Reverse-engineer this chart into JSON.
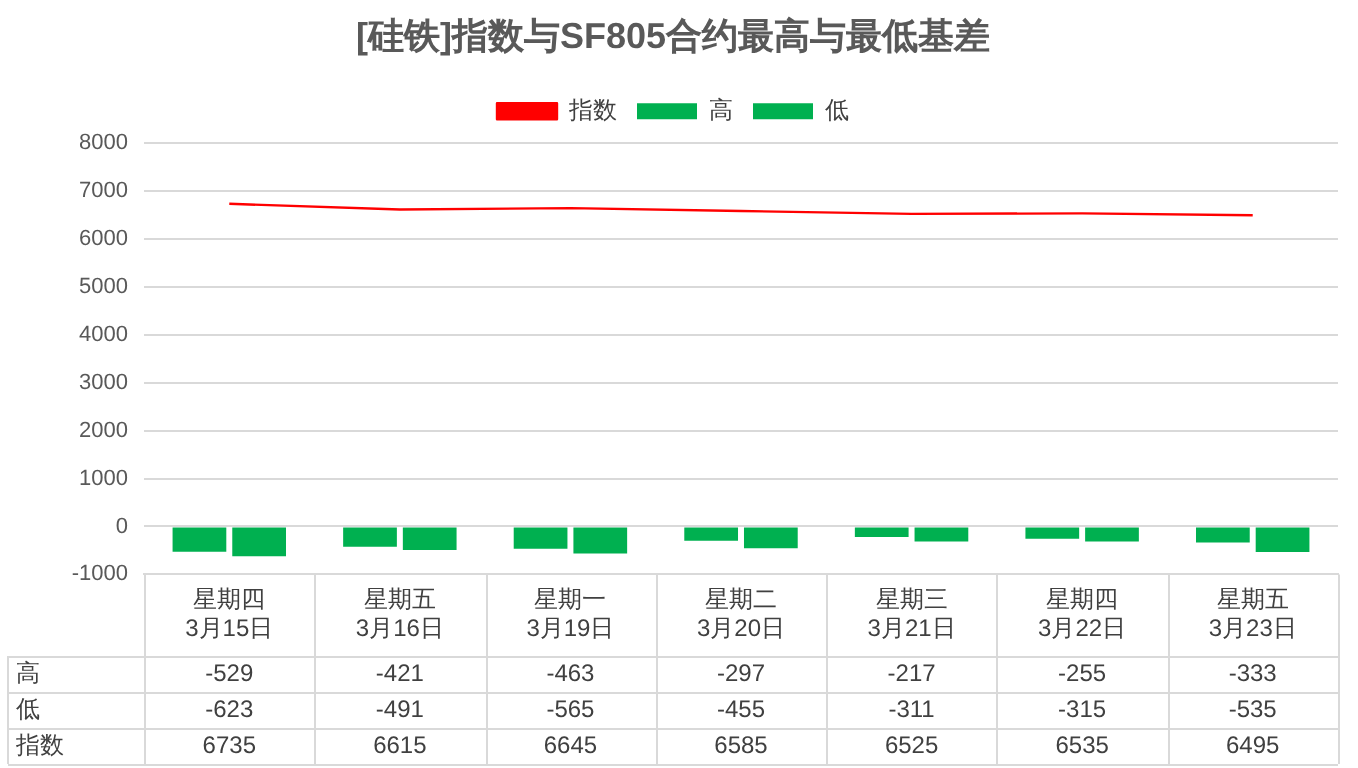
{
  "chart_data": {
    "type": "bar",
    "title": "[硅铁]指数与SF805合约最高与最低基差",
    "categories": [
      "星期四\n3月15日",
      "星期五\n3月16日",
      "星期一\n3月19日",
      "星期二\n3月20日",
      "星期三\n3月21日",
      "星期四\n3月22日",
      "星期五\n3月23日"
    ],
    "series": [
      {
        "name": "高",
        "color": "#00b050",
        "values": [
          -529,
          -421,
          -463,
          -297,
          -217,
          -255,
          -333
        ]
      },
      {
        "name": "低",
        "color": "#00b050",
        "values": [
          -623,
          -491,
          -565,
          -455,
          -311,
          -315,
          -535
        ]
      },
      {
        "name": "指数",
        "type": "line",
        "color": "#ff0000",
        "values": [
          6735,
          6615,
          6645,
          6585,
          6525,
          6535,
          6495
        ]
      }
    ],
    "ylim": [
      -1000,
      8000
    ],
    "yticks": [
      -1000,
      0,
      1000,
      2000,
      3000,
      4000,
      5000,
      6000,
      7000,
      8000
    ],
    "grid": "y",
    "legend": "top",
    "marker": "none",
    "data_labels": true
  }
}
